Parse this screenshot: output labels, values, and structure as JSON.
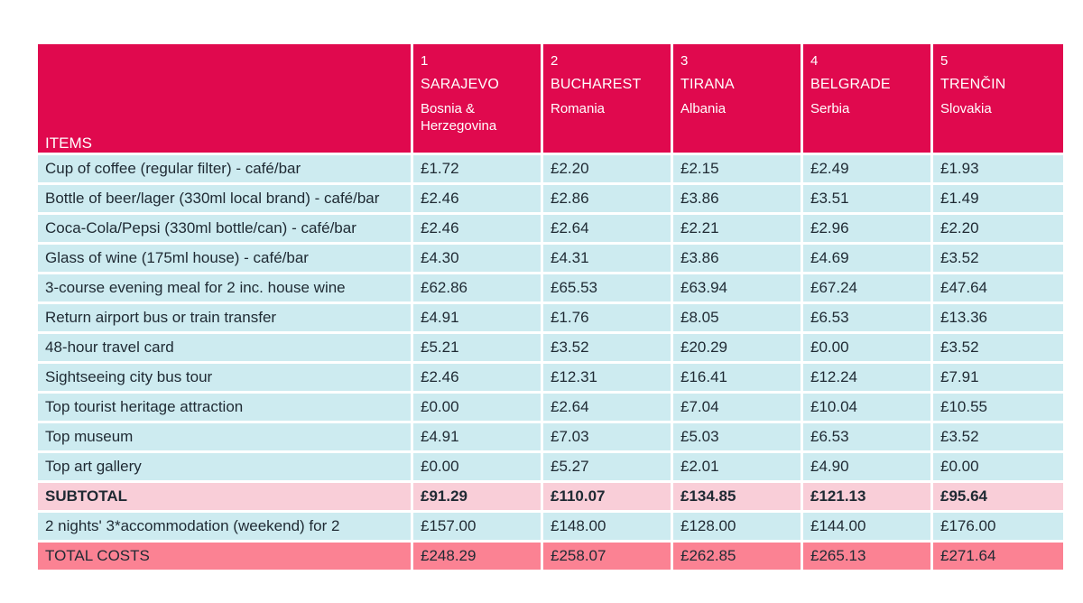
{
  "table": {
    "items_header": "ITEMS",
    "cities": [
      {
        "num": "1",
        "city": "SARAJEVO",
        "country": "Bosnia & Herzegovina"
      },
      {
        "num": "2",
        "city": "BUCHAREST",
        "country": "Romania"
      },
      {
        "num": "3",
        "city": "TIRANA",
        "country": "Albania"
      },
      {
        "num": "4",
        "city": "BELGRADE",
        "country": "Serbia"
      },
      {
        "num": "5",
        "city": "TRENČIN",
        "country": "Slovakia"
      }
    ],
    "rows": [
      {
        "item": "Cup of coffee (regular filter) - café/bar",
        "values": [
          "£1.72",
          "£2.20",
          "£2.15",
          "£2.49",
          "£1.93"
        ]
      },
      {
        "item": "Bottle of beer/lager (330ml local brand) - café/bar",
        "values": [
          "£2.46",
          "£2.86",
          "£3.86",
          "£3.51",
          "£1.49"
        ]
      },
      {
        "item": "Coca-Cola/Pepsi (330ml bottle/can) - café/bar",
        "values": [
          "£2.46",
          "£2.64",
          "£2.21",
          "£2.96",
          "£2.20"
        ]
      },
      {
        "item": "Glass of wine (175ml house) - café/bar",
        "values": [
          "£4.30",
          "£4.31",
          "£3.86",
          "£4.69",
          "£3.52"
        ]
      },
      {
        "item": "3-course evening meal for 2 inc. house wine",
        "values": [
          "£62.86",
          "£65.53",
          "£63.94",
          "£67.24",
          "£47.64"
        ]
      },
      {
        "item": "Return airport bus or train transfer",
        "values": [
          "£4.91",
          "£1.76",
          "£8.05",
          "£6.53",
          "£13.36"
        ]
      },
      {
        "item": "48-hour travel card",
        "values": [
          "£5.21",
          "£3.52",
          "£20.29",
          "£0.00",
          "£3.52"
        ]
      },
      {
        "item": "Sightseeing city bus tour",
        "values": [
          "£2.46",
          "£12.31",
          "£16.41",
          "£12.24",
          "£7.91"
        ]
      },
      {
        "item": "Top tourist heritage attraction",
        "values": [
          "£0.00",
          "£2.64",
          "£7.04",
          "£10.04",
          "£10.55"
        ]
      },
      {
        "item": "Top museum",
        "values": [
          "£4.91",
          "£7.03",
          "£5.03",
          "£6.53",
          "£3.52"
        ]
      },
      {
        "item": "Top art gallery",
        "values": [
          "£0.00",
          "£5.27",
          "£2.01",
          "£4.90",
          "£0.00"
        ]
      }
    ],
    "subtotal": {
      "label": "SUBTOTAL",
      "values": [
        "£91.29",
        "£110.07",
        "£134.85",
        "£121.13",
        "£95.64"
      ]
    },
    "accommodation": {
      "label": "2 nights' 3*accommodation (weekend) for 2",
      "values": [
        "£157.00",
        "£148.00",
        "£128.00",
        "£144.00",
        "£176.00"
      ]
    },
    "total": {
      "label": "TOTAL COSTS",
      "values": [
        "£248.29",
        "£258.07",
        "£262.85",
        "£265.13",
        "£271.64"
      ]
    }
  },
  "colors": {
    "header_bg": "#e0094e",
    "row_bg": "#cdebf0",
    "subtotal_bg": "#f9ced8",
    "total_bg": "#fb8293"
  }
}
